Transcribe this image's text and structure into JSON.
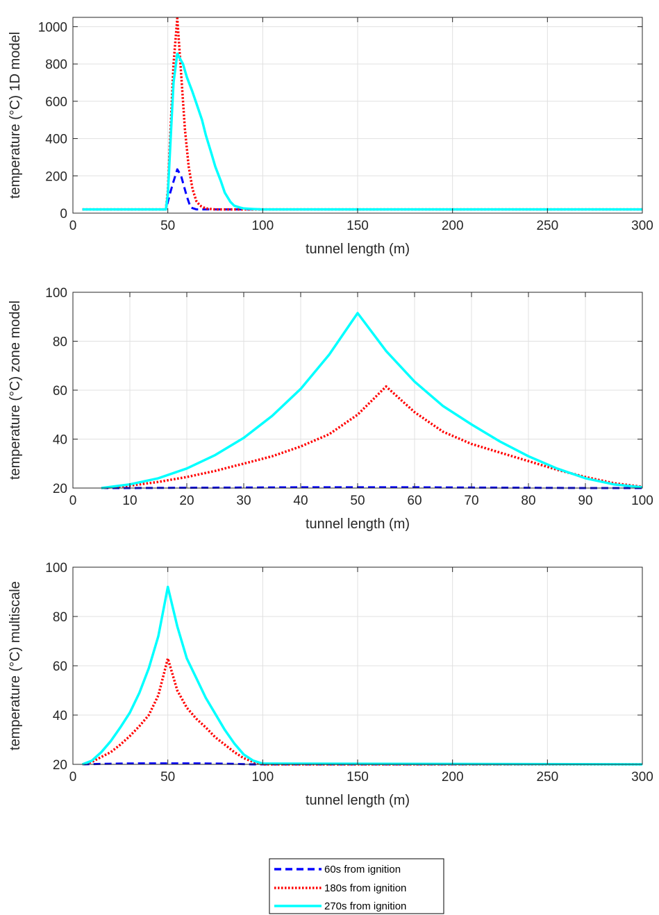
{
  "chart_data": [
    {
      "type": "line",
      "xlabel": "tunnel length (m)",
      "ylabel": "temperature (°C) 1D model",
      "xlim": [
        0,
        300
      ],
      "ylim": [
        0,
        1050
      ],
      "xticks": [
        0,
        50,
        100,
        150,
        200,
        250,
        300
      ],
      "yticks": [
        0,
        200,
        400,
        600,
        800,
        1000
      ],
      "grid": true,
      "series": [
        {
          "name": "60s from ignition",
          "x": [
            5,
            49,
            50,
            51,
            53,
            55,
            57,
            60,
            62,
            65,
            70,
            300
          ],
          "y": [
            20,
            20,
            60,
            100,
            170,
            235,
            200,
            90,
            30,
            20,
            20,
            20
          ]
        },
        {
          "name": "180s from ignition",
          "x": [
            5,
            49,
            50,
            51,
            53,
            55,
            57,
            59,
            61,
            63,
            65,
            67,
            70,
            75,
            80,
            300
          ],
          "y": [
            20,
            20,
            120,
            350,
            800,
            1045,
            750,
            450,
            250,
            130,
            65,
            40,
            25,
            20,
            20,
            20
          ]
        },
        {
          "name": "270s from ignition",
          "x": [
            5,
            49,
            50,
            51,
            52,
            53,
            55,
            58,
            60,
            63,
            65,
            68,
            70,
            73,
            75,
            78,
            80,
            83,
            85,
            88,
            90,
            95,
            100,
            300
          ],
          "y": [
            20,
            20,
            100,
            300,
            500,
            700,
            855,
            800,
            730,
            650,
            590,
            500,
            420,
            320,
            250,
            170,
            110,
            60,
            40,
            30,
            25,
            22,
            20,
            20
          ]
        }
      ]
    },
    {
      "type": "line",
      "xlabel": "tunnel length (m)",
      "ylabel": "temperature (°C) zone model",
      "xlim": [
        0,
        100
      ],
      "ylim": [
        20,
        100
      ],
      "xticks": [
        0,
        10,
        20,
        30,
        40,
        50,
        60,
        70,
        80,
        90,
        100
      ],
      "yticks": [
        20,
        40,
        60,
        80,
        100
      ],
      "grid": true,
      "series": [
        {
          "name": "60s from ignition",
          "x": [
            5,
            10,
            20,
            30,
            40,
            50,
            60,
            70,
            80,
            90,
            100
          ],
          "y": [
            20,
            20,
            20.1,
            20.2,
            20.3,
            20.3,
            20.3,
            20.2,
            20.1,
            20,
            20
          ]
        },
        {
          "name": "180s from ignition",
          "x": [
            5,
            10,
            15,
            20,
            25,
            30,
            35,
            40,
            45,
            50,
            55,
            60,
            65,
            70,
            75,
            80,
            85,
            90,
            95,
            100
          ],
          "y": [
            20,
            21,
            22.5,
            24.5,
            27,
            30,
            33,
            37,
            42,
            50,
            61.5,
            51,
            43,
            38,
            34.5,
            31,
            27.5,
            24.5,
            22,
            20.5
          ]
        },
        {
          "name": "270s from ignition",
          "x": [
            5,
            10,
            15,
            20,
            25,
            30,
            35,
            40,
            45,
            50,
            55,
            60,
            65,
            70,
            75,
            80,
            85,
            90,
            95,
            100
          ],
          "y": [
            20,
            21.5,
            24,
            28,
            33.5,
            40.5,
            49.5,
            60.5,
            74.5,
            91.5,
            76,
            63.5,
            53.5,
            46,
            39,
            33,
            28,
            24,
            21.5,
            20.3
          ]
        }
      ]
    },
    {
      "type": "line",
      "xlabel": "tunnel length (m)",
      "ylabel": "temperature (°C) multiscale",
      "xlim": [
        0,
        300
      ],
      "ylim": [
        20,
        100
      ],
      "xticks": [
        0,
        50,
        100,
        150,
        200,
        250,
        300
      ],
      "yticks": [
        20,
        40,
        60,
        80,
        100
      ],
      "grid": true,
      "series": [
        {
          "name": "60s from ignition",
          "x": [
            5,
            15,
            25,
            35,
            45,
            50,
            55,
            65,
            75,
            85,
            95,
            100,
            300
          ],
          "y": [
            20,
            20.2,
            20.3,
            20.4,
            20.4,
            20.4,
            20.4,
            20.4,
            20.3,
            20.2,
            20,
            20,
            20
          ]
        },
        {
          "name": "180s from ignition",
          "x": [
            5,
            10,
            15,
            20,
            25,
            30,
            35,
            40,
            45,
            50,
            55,
            60,
            65,
            70,
            75,
            80,
            85,
            90,
            95,
            100,
            300
          ],
          "y": [
            20,
            21,
            23,
            25,
            28,
            31.5,
            35.5,
            40,
            48,
            63,
            50,
            43,
            38.5,
            35,
            31,
            28,
            25,
            22.5,
            21,
            20,
            20
          ]
        },
        {
          "name": "270s from ignition",
          "x": [
            5,
            10,
            15,
            20,
            25,
            30,
            35,
            40,
            45,
            50,
            55,
            60,
            65,
            70,
            75,
            80,
            85,
            90,
            95,
            100,
            300
          ],
          "y": [
            20,
            21.5,
            25,
            29.5,
            35,
            41,
            49,
            59,
            72,
            92,
            76,
            63,
            55,
            47,
            40.5,
            34,
            28.5,
            24,
            21.5,
            20.3,
            20
          ]
        }
      ]
    }
  ],
  "legend": {
    "position": "bottom-center",
    "entries": [
      {
        "label": "60s from ignition",
        "color": "#0000ff",
        "style": "dashed"
      },
      {
        "label": "180s from ignition",
        "color": "#ff0000",
        "style": "dotted"
      },
      {
        "label": "270s from ignition",
        "color": "#00ffff",
        "style": "solid"
      }
    ]
  },
  "colors": {
    "series_60s": "#0000ff",
    "series_180s": "#ff0000",
    "series_270s": "#00ffff",
    "grid": "#e0e0e0",
    "axes": "#262626"
  }
}
